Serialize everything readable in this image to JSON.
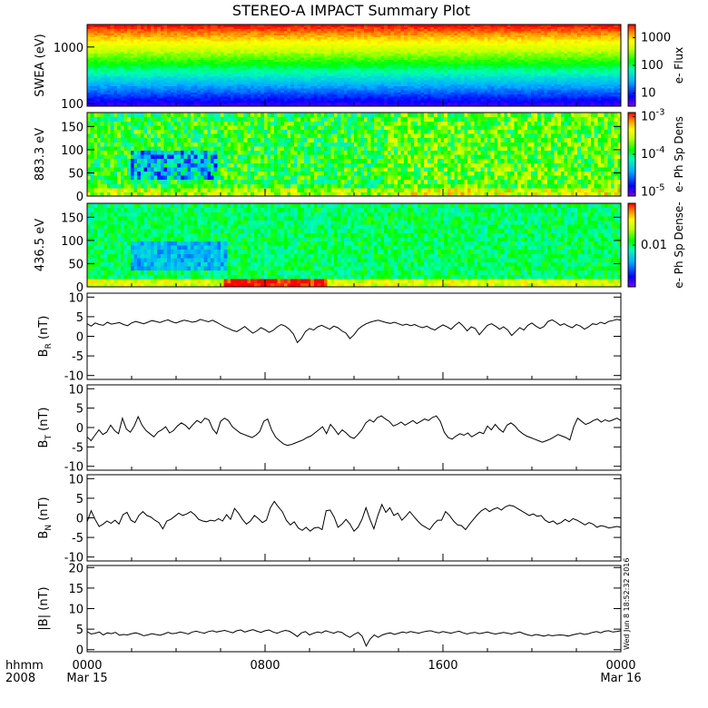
{
  "chart_data": {
    "title": "STEREO-A IMPACT Summary Plot",
    "time_axis": {
      "corner_labels": [
        "hhmm",
        "2008"
      ],
      "ticks": [
        {
          "hours": 0,
          "label": "0000",
          "date": "Mar 15"
        },
        {
          "hours": 8,
          "label": "0800",
          "date": ""
        },
        {
          "hours": 16,
          "label": "1600",
          "date": ""
        },
        {
          "hours": 24,
          "label": "0000",
          "date": "Mar 16"
        }
      ],
      "range_hours": [
        0,
        24
      ]
    },
    "timestamp": "Wed Jun  8 18:52:32 2016",
    "panels": [
      {
        "type": "heatmap",
        "ylabel": "SWEA (eV)",
        "yscale": "log",
        "ylim": [
          90,
          2500
        ],
        "yticks": [
          "100",
          "1000"
        ],
        "colorbar": {
          "label": "e- Flux",
          "scale": "log",
          "ticks": [
            "10",
            "100",
            "1000"
          ]
        }
      },
      {
        "type": "heatmap",
        "ylabel": "883.3 eV",
        "ylim": [
          0,
          180
        ],
        "yticks": [
          "0",
          "50",
          "100",
          "150"
        ],
        "colorbar": {
          "label": "e- Ph Sp Dens",
          "scale": "log",
          "ticks": [
            "10^-5",
            "10^-4",
            "10^-3"
          ]
        }
      },
      {
        "type": "heatmap",
        "ylabel": "436.5 eV",
        "ylim": [
          0,
          180
        ],
        "yticks": [
          "0",
          "50",
          "100",
          "150"
        ],
        "colorbar": {
          "label": "e- Ph Sp Dense-",
          "scale": "log",
          "ticks": [
            "0.01"
          ]
        }
      },
      {
        "type": "line",
        "ylabel": "B_R (nT)",
        "ylabel_main": "B",
        "ylabel_sub": "R",
        "ylabel_unit": " (nT)",
        "ylim": [
          -11,
          11
        ],
        "yticks": [
          "-10",
          "-5",
          "0",
          "5",
          "10"
        ],
        "values": [
          3.2,
          2.6,
          3.4,
          3.0,
          2.8,
          3.6,
          3.1,
          3.3,
          3.5,
          3.0,
          2.7,
          3.4,
          3.8,
          3.5,
          3.2,
          3.6,
          4.0,
          3.8,
          3.5,
          3.9,
          4.2,
          3.7,
          3.4,
          3.8,
          4.1,
          3.9,
          3.6,
          3.8,
          4.3,
          4.0,
          3.7,
          4.1,
          3.6,
          3.0,
          2.4,
          2.0,
          1.5,
          1.2,
          1.8,
          2.5,
          1.6,
          0.8,
          1.4,
          2.2,
          1.7,
          1.0,
          1.5,
          2.4,
          3.0,
          2.6,
          1.8,
          0.6,
          -1.6,
          -0.5,
          1.2,
          2.0,
          1.6,
          2.4,
          2.8,
          2.3,
          1.8,
          2.6,
          2.2,
          1.4,
          0.8,
          -0.6,
          0.4,
          1.8,
          2.6,
          3.2,
          3.6,
          3.9,
          4.1,
          3.8,
          3.5,
          3.3,
          3.6,
          3.2,
          2.8,
          3.1,
          2.7,
          3.0,
          2.5,
          2.2,
          2.6,
          2.0,
          1.6,
          2.3,
          2.9,
          2.4,
          1.8,
          2.8,
          3.6,
          2.6,
          1.4,
          2.4,
          2.0,
          0.4,
          1.6,
          2.8,
          3.2,
          2.6,
          1.8,
          2.4,
          1.6,
          0.2,
          1.2,
          2.2,
          1.6,
          2.8,
          3.4,
          2.6,
          2.0,
          2.5,
          3.8,
          4.2,
          3.6,
          2.8,
          3.2,
          2.6,
          2.2,
          3.0,
          2.6,
          1.8,
          2.4,
          3.2,
          3.0,
          3.6,
          3.2,
          3.8,
          4.0,
          4.3,
          4.1
        ]
      },
      {
        "type": "line",
        "ylabel": "B_T (nT)",
        "ylabel_main": "B",
        "ylabel_sub": "T",
        "ylabel_unit": " (nT)",
        "ylim": [
          -11,
          11
        ],
        "yticks": [
          "-10",
          "-5",
          "0",
          "5",
          "10"
        ],
        "values": [
          -2.4,
          -3.4,
          -2.0,
          -0.6,
          -1.8,
          -1.2,
          0.6,
          -0.8,
          -1.6,
          2.4,
          -0.4,
          -1.2,
          0.4,
          2.8,
          0.6,
          -0.8,
          -1.6,
          -2.4,
          -1.2,
          -0.6,
          0.2,
          -1.4,
          -0.8,
          0.4,
          1.2,
          0.6,
          -0.4,
          0.8,
          1.8,
          1.2,
          2.4,
          2.0,
          -0.4,
          -1.6,
          1.6,
          2.4,
          1.8,
          0.2,
          -0.6,
          -1.4,
          -1.8,
          -2.2,
          -2.6,
          -2.0,
          -1.0,
          1.6,
          2.2,
          -0.6,
          -2.4,
          -3.4,
          -4.2,
          -4.6,
          -4.4,
          -4.0,
          -3.6,
          -3.2,
          -2.6,
          -2.2,
          -1.4,
          -0.6,
          0.2,
          -1.6,
          0.8,
          -0.4,
          -1.8,
          -0.6,
          -1.4,
          -2.4,
          -2.8,
          -1.8,
          -0.6,
          1.2,
          2.0,
          1.4,
          2.6,
          3.0,
          2.2,
          1.6,
          0.4,
          0.8,
          1.4,
          0.6,
          1.2,
          1.8,
          1.0,
          1.6,
          2.2,
          1.8,
          2.6,
          3.0,
          1.6,
          -1.2,
          -2.6,
          -3.0,
          -2.2,
          -1.6,
          -2.0,
          -1.4,
          -2.4,
          -1.8,
          -1.2,
          -1.6,
          0.4,
          -0.6,
          0.8,
          -0.4,
          -1.2,
          0.6,
          1.2,
          0.4,
          -0.8,
          -1.6,
          -2.2,
          -2.6,
          -3.0,
          -3.4,
          -3.8,
          -3.4,
          -3.0,
          -2.4,
          -1.8,
          -2.2,
          -2.6,
          -3.2,
          0.2,
          2.4,
          1.6,
          0.8,
          1.2,
          1.8,
          2.2,
          1.4,
          2.0,
          1.6,
          2.0,
          2.4,
          1.8
        ]
      },
      {
        "type": "line",
        "ylabel": "B_N (nT)",
        "ylabel_main": "B",
        "ylabel_sub": "N",
        "ylabel_unit": " (nT)",
        "ylim": [
          -11,
          11
        ],
        "yticks": [
          "-10",
          "-5",
          "0",
          "5",
          "10"
        ],
        "values": [
          -1.0,
          1.8,
          -0.4,
          -2.2,
          -1.6,
          -0.8,
          -1.4,
          -0.6,
          -1.6,
          0.8,
          1.4,
          -0.6,
          -1.2,
          0.6,
          1.6,
          0.6,
          0.2,
          -0.6,
          -1.2,
          -2.8,
          -0.8,
          -0.4,
          0.4,
          1.2,
          0.6,
          1.0,
          1.6,
          0.8,
          -0.4,
          -0.8,
          -1.0,
          -0.6,
          -0.8,
          -0.2,
          -0.8,
          0.8,
          -0.4,
          2.4,
          1.2,
          -0.4,
          -1.6,
          -0.8,
          0.6,
          -0.2,
          -1.2,
          -0.6,
          2.6,
          4.2,
          2.8,
          1.6,
          -0.6,
          -1.8,
          -1.0,
          -2.6,
          -3.2,
          -2.4,
          -3.4,
          -2.6,
          -2.4,
          -3.0,
          1.8,
          2.0,
          0.2,
          -2.4,
          -1.6,
          -0.4,
          -1.6,
          -3.4,
          -2.4,
          -0.4,
          2.6,
          -0.4,
          -2.8,
          0.6,
          3.4,
          1.4,
          2.6,
          0.6,
          1.2,
          -0.6,
          0.4,
          1.6,
          0.4,
          -0.8,
          -1.8,
          -2.4,
          -3.0,
          -1.6,
          -0.6,
          -0.6,
          1.6,
          0.6,
          -0.8,
          -1.8,
          -2.0,
          -3.0,
          -1.6,
          -0.4,
          0.8,
          1.8,
          2.4,
          1.6,
          2.2,
          2.6,
          2.0,
          2.8,
          3.2,
          3.0,
          2.4,
          1.8,
          1.2,
          0.6,
          1.0,
          0.4,
          0.6,
          -0.6,
          -1.2,
          -0.8,
          -1.6,
          -1.2,
          -0.4,
          -1.0,
          -0.2,
          -0.6,
          -1.2,
          -1.8,
          -1.2,
          -1.6,
          -2.4,
          -2.0,
          -2.2,
          -2.6,
          -2.4,
          -2.2,
          -2.4
        ]
      },
      {
        "type": "line",
        "ylabel": "|B| (nT)",
        "ylabel_main": "|B|",
        "ylabel_sub": "",
        "ylabel_unit": " (nT)",
        "ylim": [
          -0.5,
          20.5
        ],
        "yticks": [
          "0",
          "5",
          "10",
          "15",
          "20"
        ],
        "values": [
          4.4,
          3.8,
          4.0,
          4.3,
          3.6,
          4.1,
          3.9,
          4.2,
          3.5,
          3.7,
          3.6,
          3.9,
          4.1,
          3.8,
          3.4,
          3.6,
          3.9,
          3.7,
          3.5,
          3.8,
          4.2,
          3.9,
          4.0,
          4.3,
          4.1,
          3.8,
          4.3,
          4.5,
          4.2,
          4.0,
          4.4,
          4.6,
          4.3,
          4.5,
          4.7,
          4.4,
          4.1,
          4.6,
          4.8,
          4.3,
          4.6,
          4.9,
          4.5,
          4.2,
          4.6,
          4.8,
          4.3,
          4.0,
          4.4,
          4.7,
          4.5,
          3.9,
          3.2,
          4.1,
          4.4,
          3.6,
          4.0,
          4.3,
          4.1,
          4.6,
          4.3,
          4.0,
          4.4,
          4.2,
          3.5,
          3.0,
          3.7,
          4.2,
          3.3,
          0.9,
          2.6,
          3.6,
          3.0,
          3.6,
          3.9,
          4.1,
          3.7,
          4.0,
          4.3,
          4.1,
          4.4,
          4.2,
          4.0,
          4.3,
          4.5,
          4.6,
          4.3,
          4.1,
          4.4,
          4.2,
          4.0,
          4.3,
          4.5,
          4.1,
          3.8,
          4.1,
          4.2,
          3.9,
          4.1,
          4.3,
          4.0,
          3.8,
          4.0,
          4.2,
          4.0,
          3.8,
          4.1,
          4.3,
          3.9,
          3.6,
          3.4,
          3.7,
          3.5,
          3.3,
          3.6,
          3.4,
          3.5,
          3.6,
          3.5,
          3.3,
          3.6,
          3.8,
          4.0,
          3.7,
          3.9,
          4.2,
          4.4,
          4.1,
          4.5,
          4.6,
          4.3,
          4.4,
          4.6
        ]
      }
    ]
  }
}
